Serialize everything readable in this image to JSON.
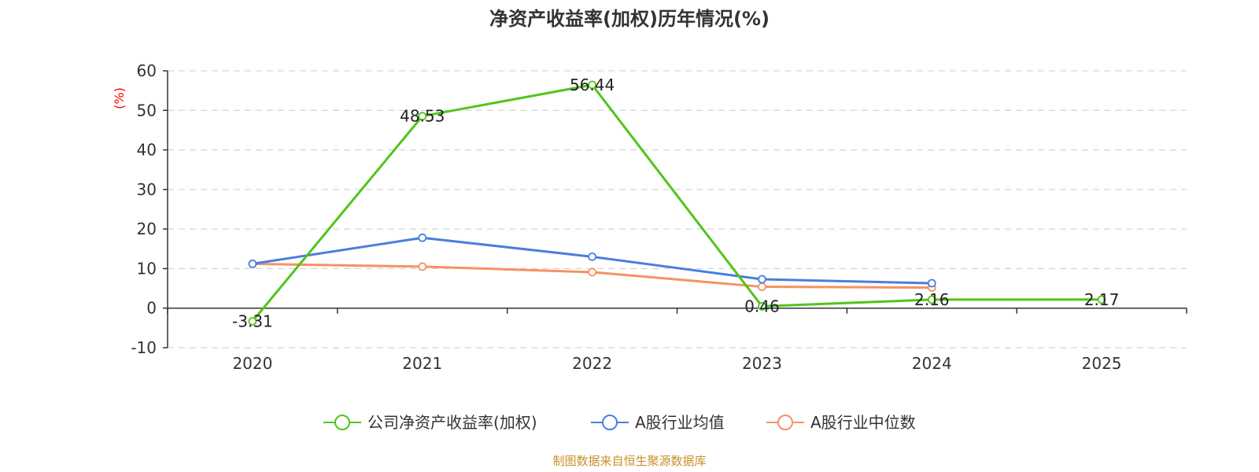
{
  "chart_data": {
    "type": "line",
    "title": "净资产收益率(加权)历年情况(%)",
    "ylabel": "(%)",
    "categories": [
      "2020",
      "2021",
      "2022",
      "2023",
      "2024",
      "2025"
    ],
    "ylim": [
      -10,
      60
    ],
    "yticks": [
      -10,
      0,
      10,
      20,
      30,
      40,
      50,
      60
    ],
    "grid": true,
    "legend_position": "bottom",
    "series": [
      {
        "name": "公司净资产收益率(加权)",
        "color": "#52c41a",
        "values": [
          -3.31,
          48.53,
          56.44,
          0.46,
          2.16,
          2.17
        ],
        "labels": [
          "-3.31",
          "48.53",
          "56.44",
          "0.46",
          "2.16",
          "2.17"
        ]
      },
      {
        "name": "A股行业均值",
        "color": "#4a7fdc",
        "values": [
          11.2,
          17.8,
          13.0,
          7.3,
          6.3,
          null
        ]
      },
      {
        "name": "A股行业中位数",
        "color": "#f59262",
        "values": [
          11.2,
          10.5,
          9.1,
          5.4,
          5.2,
          null
        ]
      }
    ],
    "source": "制图数据来自恒生聚源数据库",
    "source_color": "#c8902a",
    "ylabel_color": "#ff0000"
  }
}
